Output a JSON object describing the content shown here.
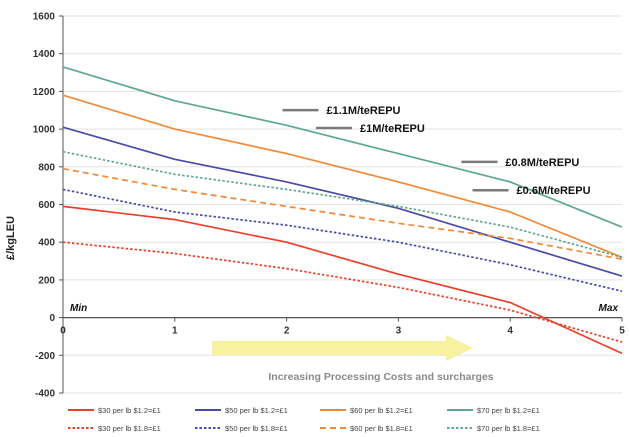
{
  "chart_data": {
    "type": "line",
    "ylabel": "£/kgLEU",
    "xlim": [
      0,
      5
    ],
    "ylim": [
      -400,
      1600
    ],
    "x_ticks": [
      "0",
      "1",
      "2",
      "3",
      "4",
      "5"
    ],
    "y_ticks": [
      "-400",
      "-200",
      "0",
      "200",
      "400",
      "600",
      "800",
      "1000",
      "1200",
      "1400",
      "1600"
    ],
    "min_label": "Min",
    "max_label": "Max",
    "arrow_label": "Increasing Processing Costs and surcharges",
    "x": [
      0,
      1,
      2,
      3,
      4,
      5
    ],
    "series": [
      {
        "name": "$30 per lb $1.2=£1",
        "color": "#e8402a",
        "dash": "solid",
        "values": [
          590,
          520,
          400,
          230,
          80,
          -190
        ]
      },
      {
        "name": "$50 per lb $1.2=£1",
        "color": "#4a4aa8",
        "dash": "solid",
        "values": [
          1010,
          840,
          720,
          580,
          400,
          220
        ]
      },
      {
        "name": "$60 per lb $1.2=£1",
        "color": "#f08a3a",
        "dash": "solid",
        "values": [
          1180,
          1000,
          870,
          720,
          560,
          320
        ]
      },
      {
        "name": "$70 per lb $1.2=£1",
        "color": "#5fa88a",
        "dash": "solid",
        "values": [
          1330,
          1150,
          1020,
          870,
          720,
          480
        ]
      },
      {
        "name": "$30 per lb $1.8=£1",
        "color": "#e8402a",
        "dash": "dot",
        "values": [
          400,
          340,
          260,
          160,
          40,
          -130
        ]
      },
      {
        "name": "$50 per lb $1.8=£1",
        "color": "#4a4aa8",
        "dash": "dot",
        "values": [
          680,
          560,
          490,
          400,
          280,
          140
        ]
      },
      {
        "name": "$60 per lb $1.8=£1",
        "color": "#f08a3a",
        "dash": "dash",
        "values": [
          790,
          680,
          590,
          500,
          420,
          310
        ]
      },
      {
        "name": "$70 per lb $1.8=£1",
        "color": "#5fa88a",
        "dash": "dot",
        "values": [
          880,
          760,
          680,
          590,
          480,
          320
        ]
      }
    ],
    "annotations": [
      {
        "text": "£1.1M/teREPU",
        "x": 2.5,
        "y": 1085
      },
      {
        "text": "£1M/teREPU",
        "x": 2.8,
        "y": 990
      },
      {
        "text": "£0.8M/teREPU",
        "x": 4.1,
        "y": 810
      },
      {
        "text": "£0.6M/teREPU",
        "x": 4.2,
        "y": 660
      }
    ],
    "legend_position": "bottom"
  }
}
